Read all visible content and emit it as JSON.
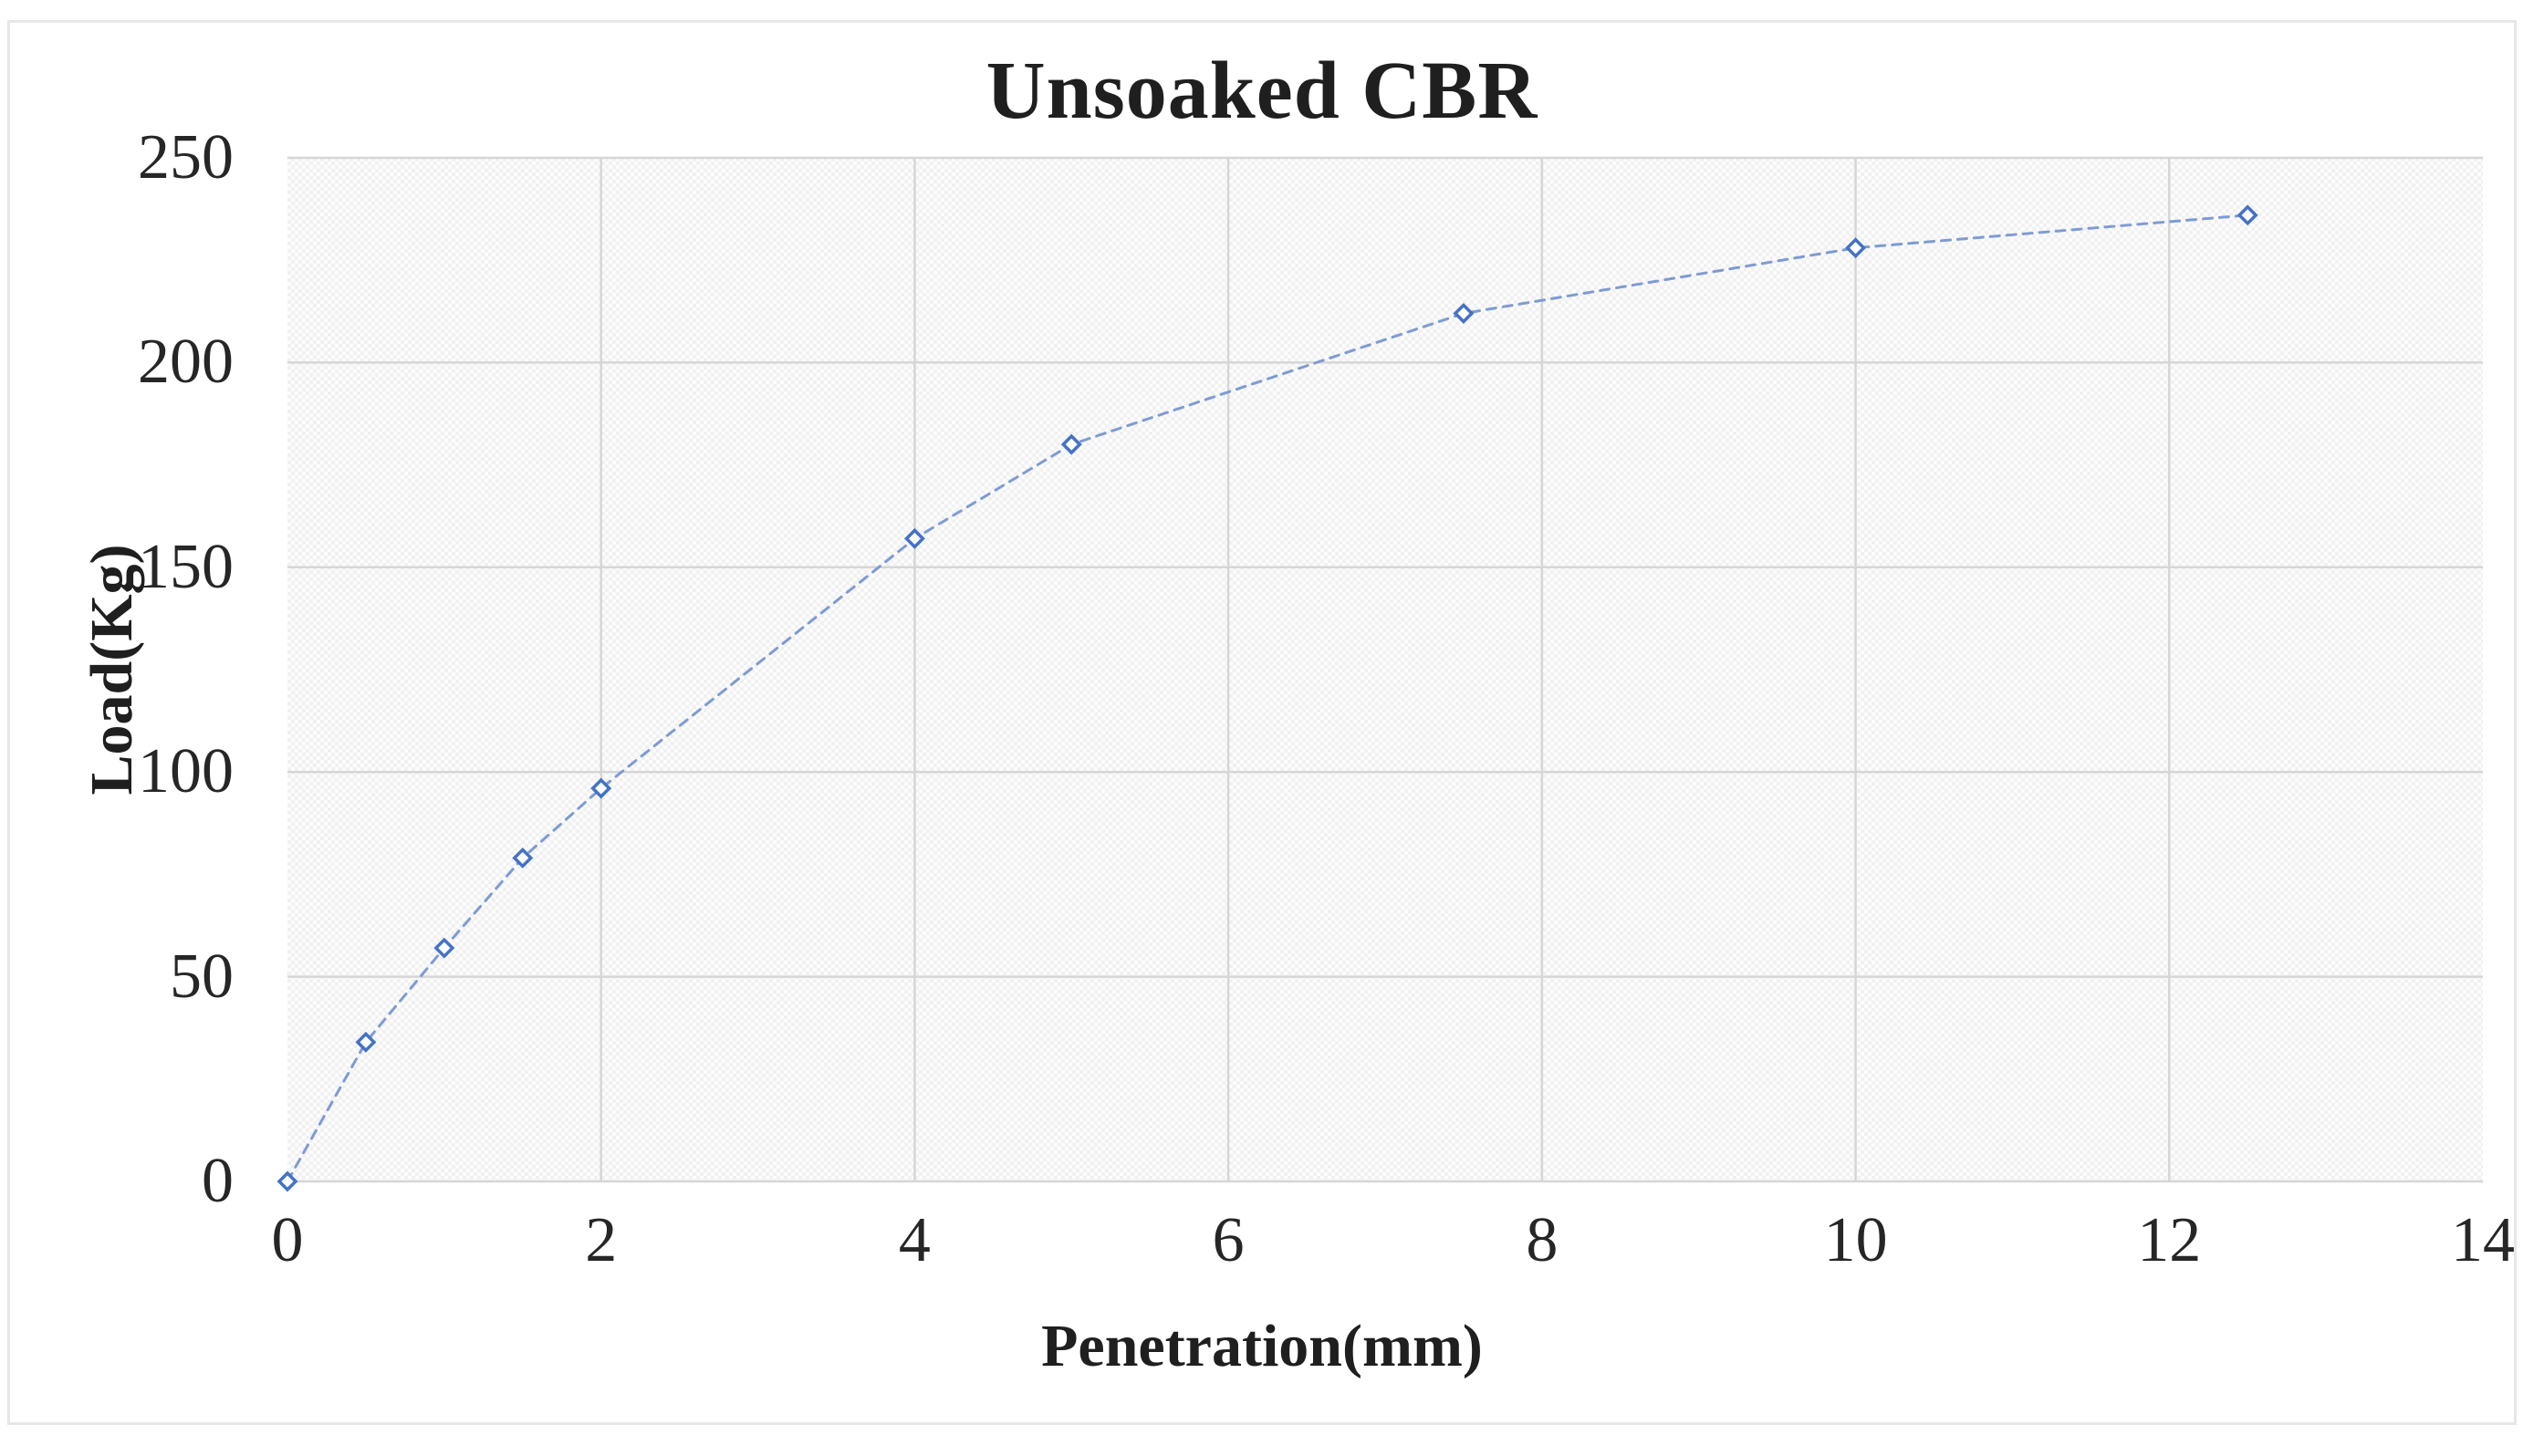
{
  "chart_data": {
    "type": "line",
    "title": "Unsoaked CBR",
    "xlabel": "Penetration(mm)",
    "ylabel": "Load(Kg)",
    "x": [
      0,
      0.5,
      1,
      1.5,
      2,
      4,
      5,
      7.5,
      10,
      12.5
    ],
    "y": [
      0,
      34,
      57,
      79,
      96,
      157,
      180,
      212,
      228,
      236
    ],
    "xlim": [
      0,
      14
    ],
    "ylim": [
      0,
      250
    ],
    "x_ticks": [
      0,
      2,
      4,
      6,
      8,
      10,
      12,
      14
    ],
    "y_ticks": [
      0,
      50,
      100,
      150,
      200,
      250
    ],
    "grid": true,
    "legend": "none",
    "line_style": "dashed",
    "marker": "open-diamond",
    "line_color": "#7E9BD3",
    "marker_color": "#4472C4",
    "gridline_color": "#D6D6D6",
    "text_color": "#262626"
  }
}
